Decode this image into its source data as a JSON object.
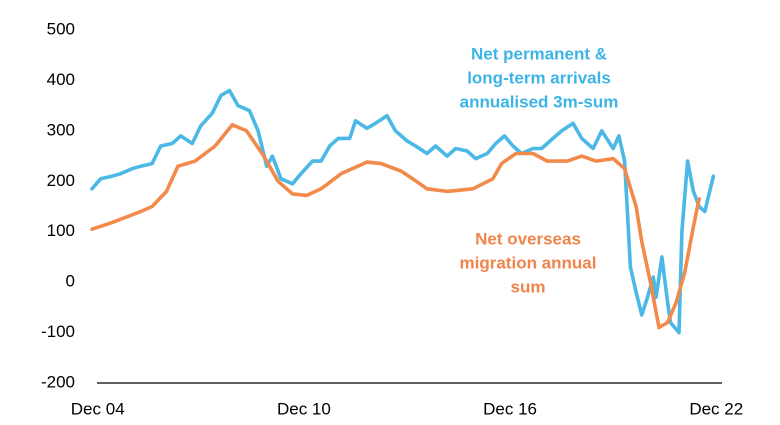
{
  "chart_data": {
    "type": "line",
    "xlim": [
      "2004-10",
      "2023-02"
    ],
    "xticks": [
      {
        "value": "2004-12",
        "label": "Dec 04"
      },
      {
        "value": "2010-12",
        "label": "Dec 10"
      },
      {
        "value": "2016-12",
        "label": "Dec 16"
      },
      {
        "value": "2022-12",
        "label": "Dec 22"
      }
    ],
    "ylim": [
      -200,
      500
    ],
    "yticks": [
      -200,
      -100,
      0,
      100,
      200,
      300,
      400,
      500
    ],
    "grid": false,
    "series": [
      {
        "color": "#4bb8e6",
        "x": [
          "2004-10",
          "2005-01",
          "2005-05",
          "2005-08",
          "2005-12",
          "2006-03",
          "2006-07",
          "2006-10",
          "2007-02",
          "2007-05",
          "2007-09",
          "2007-12",
          "2008-04",
          "2008-07",
          "2008-10",
          "2009-01",
          "2009-05",
          "2009-08",
          "2009-11",
          "2010-01",
          "2010-04",
          "2010-08",
          "2010-11",
          "2011-03",
          "2011-06",
          "2011-09",
          "2011-12",
          "2012-04",
          "2012-06",
          "2012-10",
          "2013-01",
          "2013-05",
          "2013-08",
          "2013-12",
          "2014-03",
          "2014-07",
          "2014-10",
          "2015-02",
          "2015-05",
          "2015-09",
          "2015-12",
          "2016-04",
          "2016-07",
          "2016-10",
          "2017-01",
          "2017-04",
          "2017-08",
          "2017-11",
          "2018-03",
          "2018-06",
          "2018-10",
          "2019-01",
          "2019-05",
          "2019-08",
          "2019-12",
          "2020-02",
          "2020-04",
          "2020-06",
          "2020-08",
          "2020-10",
          "2020-12",
          "2021-02",
          "2021-03",
          "2021-05",
          "2021-07",
          "2021-08",
          "2021-11",
          "2021-12",
          "2022-02",
          "2022-04",
          "2022-06",
          "2022-08",
          "2022-11"
        ],
        "values": [
          185,
          205,
          210,
          215,
          225,
          230,
          235,
          270,
          275,
          290,
          275,
          310,
          335,
          370,
          380,
          350,
          340,
          300,
          230,
          250,
          205,
          195,
          215,
          240,
          240,
          270,
          285,
          285,
          320,
          305,
          315,
          330,
          300,
          280,
          270,
          255,
          270,
          250,
          265,
          260,
          245,
          255,
          275,
          290,
          270,
          255,
          265,
          265,
          285,
          300,
          315,
          285,
          265,
          300,
          265,
          290,
          240,
          30,
          -20,
          -65,
          -30,
          10,
          -30,
          50,
          -40,
          -80,
          -100,
          100,
          240,
          180,
          150,
          140,
          210
        ]
      },
      {
        "color": "#f28a4c",
        "x": [
          "2004-10",
          "2005-05",
          "2006-03",
          "2006-07",
          "2006-12",
          "2007-04",
          "2007-10",
          "2008-05",
          "2008-11",
          "2009-04",
          "2009-10",
          "2010-03",
          "2010-08",
          "2011-01",
          "2011-06",
          "2012-01",
          "2012-10",
          "2013-03",
          "2013-10",
          "2014-02",
          "2014-07",
          "2015-02",
          "2015-11",
          "2016-06",
          "2016-09",
          "2017-02",
          "2017-08",
          "2018-01",
          "2018-08",
          "2019-01",
          "2019-06",
          "2019-12",
          "2020-04",
          "2020-08",
          "2020-10",
          "2021-01",
          "2021-04",
          "2021-07",
          "2021-10",
          "2022-01",
          "2022-04",
          "2022-06"
        ],
        "values": [
          105,
          118,
          140,
          150,
          180,
          230,
          240,
          270,
          312,
          300,
          250,
          200,
          175,
          172,
          185,
          215,
          238,
          235,
          220,
          205,
          185,
          180,
          185,
          205,
          235,
          255,
          255,
          240,
          240,
          250,
          240,
          245,
          225,
          150,
          80,
          0,
          -90,
          -80,
          -40,
          20,
          110,
          165
        ]
      }
    ],
    "annotations": [
      {
        "color": "#3cb4e6",
        "lines": [
          "Net permanent &",
          "long-term arrivals",
          "annualised 3m-sum"
        ]
      },
      {
        "color": "#f0844a",
        "lines": [
          "Net overseas",
          "migration annual",
          "sum"
        ]
      }
    ]
  }
}
